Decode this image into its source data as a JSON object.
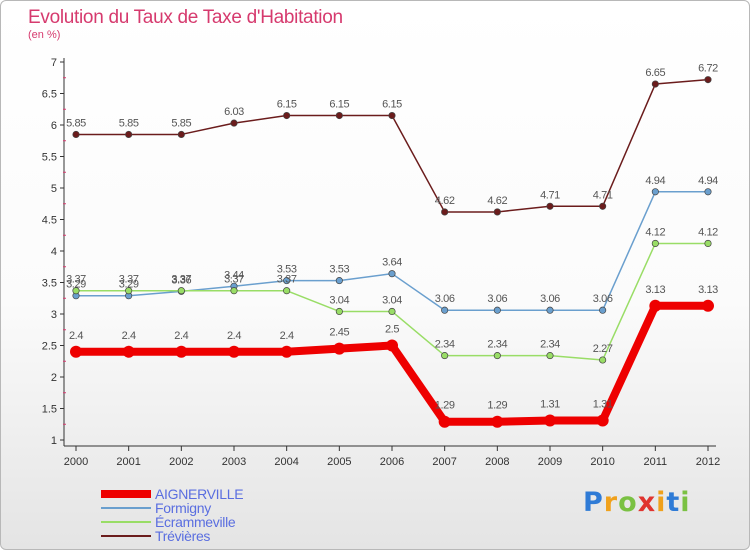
{
  "chart_data": {
    "type": "line",
    "title": "Evolution du Taux de Taxe d'Habitation",
    "subtitle": "(en %)",
    "x": [
      "2000",
      "2001",
      "2002",
      "2003",
      "2004",
      "2005",
      "2006",
      "2007",
      "2008",
      "2009",
      "2010",
      "2011",
      "2012"
    ],
    "y_ticks": [
      "1",
      "1.5",
      "2",
      "2.5",
      "3",
      "3.5",
      "4",
      "4.5",
      "5",
      "5.5",
      "6",
      "6.5",
      "7"
    ],
    "ylim": [
      1,
      7
    ],
    "grid": "none",
    "legend_position": "bottom-left",
    "series": [
      {
        "name": "Trévières",
        "color": "#6b1c1c",
        "values": [
          5.85,
          5.85,
          5.85,
          6.03,
          6.15,
          6.15,
          6.15,
          4.62,
          4.62,
          4.71,
          4.71,
          6.65,
          6.72
        ],
        "labels": [
          "5.85",
          "5.85",
          "5.85",
          "6.03",
          "6.15",
          "6.15",
          "6.15",
          "4.62",
          "4.62",
          "4.71",
          "4.71",
          "6.65",
          "6.72"
        ]
      },
      {
        "name": "Formigny",
        "color": "#6a9fce",
        "values": [
          3.29,
          3.29,
          3.36,
          3.44,
          3.53,
          3.53,
          3.64,
          3.06,
          3.06,
          3.06,
          3.06,
          4.94,
          4.94
        ],
        "labels": [
          "3.29",
          "3.29",
          "3.36",
          "3.44",
          "3.53",
          "3.53",
          "3.64",
          "3.06",
          "3.06",
          "3.06",
          "3.06",
          "4.94",
          "4.94"
        ]
      },
      {
        "name": "Écrammeville",
        "color": "#99dd66",
        "values": [
          3.37,
          3.37,
          3.37,
          3.37,
          3.37,
          3.04,
          3.04,
          2.34,
          2.34,
          2.34,
          2.27,
          4.12,
          4.12
        ],
        "labels": [
          "3.37",
          "3.37",
          "3.37",
          "3.37",
          "3.37",
          "3.04",
          "3.04",
          "2.34",
          "2.34",
          "2.34",
          "2.27",
          "4.12",
          "4.12"
        ]
      },
      {
        "name": "AIGNERVILLE",
        "color": "#ee0000",
        "values": [
          2.4,
          2.4,
          2.4,
          2.4,
          2.4,
          2.45,
          2.5,
          1.29,
          1.29,
          1.31,
          1.31,
          3.13,
          3.13
        ],
        "labels": [
          "2.4",
          "2.4",
          "2.4",
          "2.4",
          "2.4",
          "2.45",
          "2.5",
          "1.29",
          "1.29",
          "1.31",
          "1.31",
          "3.13",
          "3.13"
        ]
      }
    ],
    "legend": [
      "AIGNERVILLE",
      "Formigny",
      "Écrammeville",
      "Trévières"
    ]
  },
  "logo": {
    "letters": [
      "P",
      "r",
      "o",
      "x",
      "i",
      "t",
      "i"
    ],
    "colors": [
      "#2f7bd6",
      "#f0a11c",
      "#7ac143",
      "#e0342f",
      "#f0a11c",
      "#2f7bd6",
      "#7ac143"
    ]
  }
}
